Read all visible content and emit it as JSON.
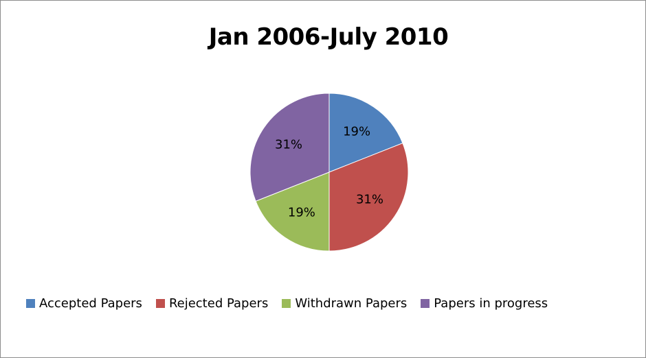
{
  "chart_data": {
    "type": "pie",
    "title": "Jan 2006-July 2010",
    "categories": [
      "Accepted Papers",
      "Rejected Papers",
      "Withdrawn Papers",
      "Papers in progress"
    ],
    "values": [
      19,
      31,
      19,
      31
    ],
    "labels": [
      "19%",
      "31%",
      "19%",
      "31%"
    ],
    "unit": "%",
    "colors": [
      "#4f81bd",
      "#c0504d",
      "#9bbb59",
      "#8064a2"
    ],
    "legend_position": "bottom",
    "start_angle": "12 o'clock",
    "direction": "clockwise"
  }
}
